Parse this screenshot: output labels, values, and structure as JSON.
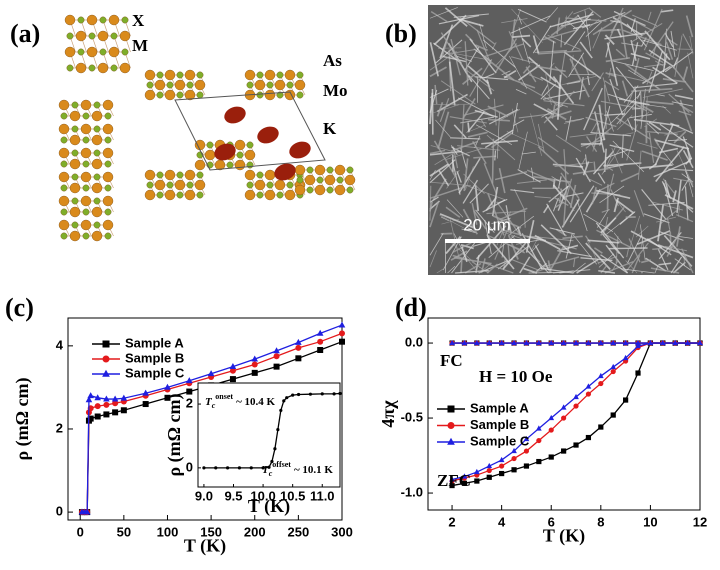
{
  "figure": {
    "panel_a": {
      "label": "(a)",
      "atom_labels": [
        "X",
        "M",
        "As",
        "Mo",
        "K"
      ]
    },
    "panel_b": {
      "label": "(b)",
      "scale_bar": "20 μm"
    }
  },
  "chart_data": [
    {
      "type": "line",
      "panel_label": "(c)",
      "x_label": "T (K)",
      "y_label": "ρ (mΩ cm)",
      "x": [
        2,
        5,
        8,
        10,
        12,
        20,
        30,
        40,
        50,
        75,
        100,
        125,
        150,
        175,
        200,
        225,
        250,
        275,
        300
      ],
      "series": [
        {
          "name": "Sample A",
          "color": "#000000",
          "marker": "square",
          "values": [
            0,
            0,
            0,
            2.2,
            2.25,
            2.3,
            2.35,
            2.4,
            2.45,
            2.6,
            2.75,
            2.9,
            3.05,
            3.2,
            3.35,
            3.5,
            3.7,
            3.9,
            4.1
          ]
        },
        {
          "name": "Sample B",
          "color": "#e41a1c",
          "marker": "circle",
          "values": [
            0,
            0,
            0,
            2.4,
            2.5,
            2.55,
            2.58,
            2.62,
            2.66,
            2.8,
            2.95,
            3.1,
            3.25,
            3.4,
            3.55,
            3.75,
            3.95,
            4.1,
            4.3
          ]
        },
        {
          "name": "Sample C",
          "color": "#1f1fe0",
          "marker": "triangle",
          "values": [
            0,
            0,
            0,
            2.7,
            2.8,
            2.75,
            2.72,
            2.72,
            2.74,
            2.86,
            3.0,
            3.16,
            3.33,
            3.5,
            3.68,
            3.88,
            4.08,
            4.3,
            4.5
          ]
        }
      ],
      "xlim": [
        -14,
        300
      ],
      "xticks": [
        0,
        50,
        100,
        150,
        200,
        250,
        300
      ],
      "ylim": [
        -0.19,
        4.67
      ],
      "yticks": [
        0,
        2,
        4
      ],
      "inset": {
        "type": "line",
        "x_label": "T (K)",
        "y_label": "ρ (mΩ cm)",
        "x": [
          9.0,
          9.2,
          9.4,
          9.6,
          9.8,
          10.0,
          10.1,
          10.15,
          10.2,
          10.25,
          10.3,
          10.35,
          10.4,
          10.5,
          10.6,
          10.8,
          11.0,
          11.2,
          11.3
        ],
        "series": [
          {
            "color": "#000000",
            "marker": "circle",
            "values": [
              0,
              0,
              0,
              0,
              0,
              0,
              0.02,
              0.2,
              0.6,
              1.2,
              1.8,
              2.1,
              2.2,
              2.28,
              2.3,
              2.31,
              2.32,
              2.32,
              2.33
            ]
          }
        ],
        "xlim": [
          8.9,
          11.3
        ],
        "xticks": [
          {
            "value": 9,
            "label": "9.0"
          },
          {
            "value": 9.5,
            "label": "9.5"
          },
          {
            "value": 10,
            "label": "10.0"
          },
          {
            "value": 10.5,
            "label": "10.5"
          },
          {
            "value": 11,
            "label": "11.0"
          }
        ],
        "ylim": [
          -0.6,
          2.66
        ],
        "yticks": [
          0,
          2
        ],
        "annotations": [
          {
            "symbol": "T",
            "subscript": "c",
            "superscript": "onset",
            "text": "~ 10.4 K"
          },
          {
            "symbol": "T",
            "subscript": "c",
            "superscript": "offset",
            "text": "~ 10.1 K"
          }
        ]
      }
    },
    {
      "type": "line",
      "panel_label": "(d)",
      "x_label": "T (K)",
      "y_label": "4πχ",
      "x": [
        2,
        2.5,
        3,
        3.5,
        4,
        4.5,
        5,
        5.5,
        6,
        6.5,
        7,
        7.5,
        8,
        8.5,
        9,
        9.5,
        10,
        10.5,
        11,
        11.5,
        12
      ],
      "series": [
        {
          "name": "Sample A",
          "color": "#000000",
          "marker": "square",
          "values": [
            -0.95,
            -0.935,
            -0.92,
            -0.895,
            -0.87,
            -0.845,
            -0.82,
            -0.79,
            -0.76,
            -0.72,
            -0.68,
            -0.63,
            -0.56,
            -0.48,
            -0.38,
            -0.2,
            0,
            0,
            0,
            0,
            0
          ],
          "fc_values": [
            0,
            0,
            0,
            0,
            0,
            0,
            0,
            0,
            0,
            0,
            0,
            0,
            0,
            0,
            0,
            0,
            0,
            0,
            0,
            0,
            0
          ]
        },
        {
          "name": "Sample B",
          "color": "#e41a1c",
          "marker": "circle",
          "values": [
            -0.92,
            -0.9,
            -0.88,
            -0.85,
            -0.82,
            -0.77,
            -0.72,
            -0.65,
            -0.58,
            -0.5,
            -0.42,
            -0.34,
            -0.27,
            -0.19,
            -0.12,
            -0.03,
            0,
            0,
            0,
            0,
            0
          ],
          "fc_values": [
            0,
            0,
            0,
            0,
            0,
            0,
            0,
            0,
            0,
            0,
            0,
            0,
            0,
            0,
            0,
            0,
            0,
            0,
            0,
            0,
            0
          ]
        },
        {
          "name": "Sample C",
          "color": "#1f1fe0",
          "marker": "triangle",
          "values": [
            -0.91,
            -0.89,
            -0.86,
            -0.82,
            -0.78,
            -0.72,
            -0.64,
            -0.57,
            -0.5,
            -0.43,
            -0.36,
            -0.29,
            -0.22,
            -0.16,
            -0.1,
            -0.02,
            0,
            0,
            0,
            0,
            0
          ],
          "fc_values": [
            0,
            0,
            0,
            0,
            0,
            0,
            0,
            0,
            0,
            0,
            0,
            0,
            0,
            0,
            0,
            0,
            0,
            0,
            0,
            0,
            0
          ]
        }
      ],
      "xlim": [
        1.03,
        12
      ],
      "xticks": [
        2,
        4,
        6,
        8,
        10,
        12
      ],
      "ylim": [
        -1.113,
        0.167
      ],
      "yticks": [
        {
          "value": -1,
          "label": "-1.0"
        },
        {
          "value": -0.5,
          "label": "-0.5"
        },
        {
          "value": 0,
          "label": "0.0"
        }
      ],
      "annotations": [
        "FC",
        "H = 10 Oe",
        "ZFC"
      ]
    }
  ]
}
